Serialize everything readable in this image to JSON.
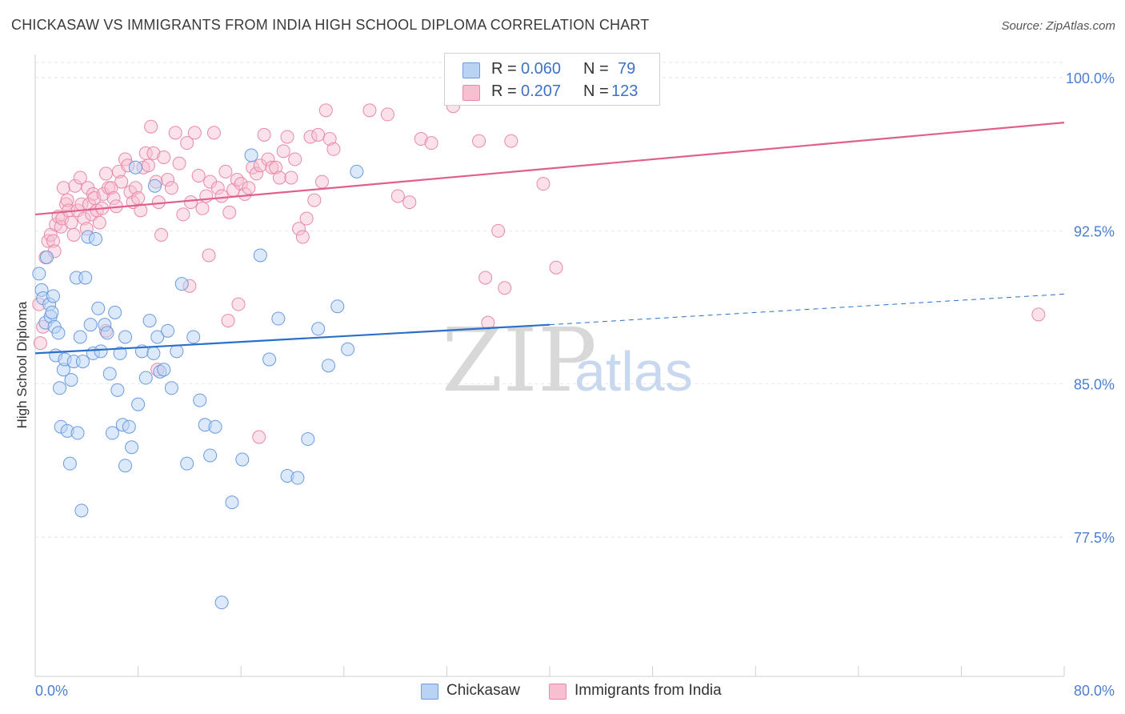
{
  "title": "CHICKASAW VS IMMIGRANTS FROM INDIA HIGH SCHOOL DIPLOMA CORRELATION CHART",
  "source": "Source: ZipAtlas.com",
  "watermark": {
    "zip": "ZIP",
    "atlas": "atlas"
  },
  "legend": {
    "rows": [
      {
        "r_label": "R = ",
        "r_value": "0.060",
        "n_label": "N = ",
        "n_value": "79"
      },
      {
        "r_label": "R = ",
        "r_value": "0.207",
        "n_label": "N = ",
        "n_value": "123"
      }
    ]
  },
  "bottom_legend": [
    "Chickasaw",
    "Immigrants from India"
  ],
  "colors": {
    "blue_fill": "#b9d3f5",
    "blue_stroke": "#6b9be0",
    "blue_line": "#2a6fc9",
    "pink_fill": "#f7bfd0",
    "pink_stroke": "#e889a8",
    "pink_line": "#e0608b",
    "grid": "#e6e6e6",
    "tick_text": "#4a7fd0"
  },
  "chart_data": {
    "type": "scatter",
    "title": "CHICKASAW VS IMMIGRANTS FROM INDIA HIGH SCHOOL DIPLOMA CORRELATION CHART",
    "xlabel": "",
    "ylabel": "High School Diploma",
    "xlim": [
      0,
      80
    ],
    "ylim": [
      71.0,
      101.0
    ],
    "x_tick_labels": [
      "0.0%",
      "80.0%"
    ],
    "y_ticks": [
      77.5,
      85.0,
      92.5,
      100.0
    ],
    "y_tick_labels": [
      "77.5%",
      "85.0%",
      "92.5%",
      "100.0%"
    ],
    "grid": true,
    "legend_position": "top-center",
    "series": [
      {
        "name": "Chickasaw",
        "color": "#6b9be0",
        "R": 0.06,
        "N": 79,
        "trend": {
          "x0": 0,
          "y0": 86.5,
          "x1": 40,
          "y1": 87.9,
          "dashed_x1": 80,
          "dashed_y1": 89.4
        },
        "points": [
          [
            0.3,
            90.4
          ],
          [
            0.5,
            89.6
          ],
          [
            0.6,
            89.2
          ],
          [
            0.8,
            88.0
          ],
          [
            0.9,
            91.2
          ],
          [
            1.1,
            88.9
          ],
          [
            1.2,
            88.3
          ],
          [
            1.3,
            88.5
          ],
          [
            1.4,
            89.3
          ],
          [
            1.5,
            87.8
          ],
          [
            1.6,
            86.4
          ],
          [
            1.8,
            87.5
          ],
          [
            1.9,
            84.8
          ],
          [
            2.0,
            82.9
          ],
          [
            2.2,
            85.7
          ],
          [
            2.3,
            86.2
          ],
          [
            2.5,
            82.7
          ],
          [
            2.7,
            81.1
          ],
          [
            2.8,
            85.2
          ],
          [
            3.0,
            86.1
          ],
          [
            3.2,
            90.2
          ],
          [
            3.3,
            82.6
          ],
          [
            3.5,
            87.3
          ],
          [
            3.7,
            86.1
          ],
          [
            3.9,
            90.2
          ],
          [
            4.1,
            92.2
          ],
          [
            4.3,
            87.9
          ],
          [
            4.5,
            86.5
          ],
          [
            4.7,
            92.1
          ],
          [
            4.9,
            88.7
          ],
          [
            5.1,
            86.6
          ],
          [
            5.4,
            87.9
          ],
          [
            5.6,
            87.5
          ],
          [
            5.8,
            85.5
          ],
          [
            6.0,
            82.6
          ],
          [
            6.2,
            88.5
          ],
          [
            6.4,
            84.7
          ],
          [
            6.6,
            86.5
          ],
          [
            6.8,
            83.0
          ],
          [
            7.0,
            87.3
          ],
          [
            7.3,
            82.9
          ],
          [
            7.5,
            81.9
          ],
          [
            7.8,
            95.6
          ],
          [
            8.0,
            84.0
          ],
          [
            8.3,
            86.6
          ],
          [
            8.6,
            85.3
          ],
          [
            8.9,
            88.1
          ],
          [
            9.2,
            86.5
          ],
          [
            9.5,
            87.3
          ],
          [
            9.7,
            85.6
          ],
          [
            10.0,
            85.7
          ],
          [
            10.3,
            87.6
          ],
          [
            10.6,
            84.8
          ],
          [
            11.0,
            86.6
          ],
          [
            11.4,
            89.9
          ],
          [
            11.8,
            81.1
          ],
          [
            12.3,
            87.3
          ],
          [
            12.8,
            84.2
          ],
          [
            13.2,
            83.0
          ],
          [
            13.6,
            81.5
          ],
          [
            14.0,
            82.9
          ],
          [
            14.5,
            74.3
          ],
          [
            15.3,
            79.2
          ],
          [
            16.1,
            81.3
          ],
          [
            16.8,
            96.2
          ],
          [
            17.5,
            91.3
          ],
          [
            18.2,
            86.2
          ],
          [
            18.9,
            88.2
          ],
          [
            19.6,
            80.5
          ],
          [
            20.4,
            80.4
          ],
          [
            21.2,
            82.3
          ],
          [
            22.0,
            87.7
          ],
          [
            22.8,
            85.9
          ],
          [
            23.5,
            88.8
          ],
          [
            24.3,
            86.7
          ],
          [
            25.0,
            95.4
          ],
          [
            3.6,
            78.8
          ],
          [
            9.3,
            94.7
          ],
          [
            7.0,
            81.0
          ]
        ]
      },
      {
        "name": "Immigrants from India",
        "color": "#e889a8",
        "R": 0.207,
        "N": 123,
        "trend": {
          "x0": 0,
          "y0": 93.3,
          "x1": 80,
          "y1": 97.8
        },
        "points": [
          [
            0.3,
            88.9
          ],
          [
            0.4,
            87.0
          ],
          [
            0.6,
            87.8
          ],
          [
            0.8,
            91.2
          ],
          [
            1.0,
            92.0
          ],
          [
            1.2,
            92.3
          ],
          [
            1.4,
            92.0
          ],
          [
            1.5,
            91.5
          ],
          [
            1.6,
            92.8
          ],
          [
            1.8,
            93.2
          ],
          [
            2.0,
            92.7
          ],
          [
            2.1,
            93.1
          ],
          [
            2.2,
            94.6
          ],
          [
            2.4,
            93.8
          ],
          [
            2.5,
            94.0
          ],
          [
            2.6,
            93.5
          ],
          [
            2.8,
            92.9
          ],
          [
            3.0,
            92.3
          ],
          [
            3.1,
            94.7
          ],
          [
            3.3,
            93.5
          ],
          [
            3.5,
            95.1
          ],
          [
            3.6,
            93.8
          ],
          [
            3.8,
            93.1
          ],
          [
            4.0,
            92.6
          ],
          [
            4.1,
            94.6
          ],
          [
            4.2,
            93.8
          ],
          [
            4.4,
            93.3
          ],
          [
            4.5,
            94.3
          ],
          [
            4.6,
            94.1
          ],
          [
            4.8,
            93.5
          ],
          [
            5.0,
            92.9
          ],
          [
            5.2,
            93.6
          ],
          [
            5.3,
            94.3
          ],
          [
            5.5,
            95.3
          ],
          [
            5.7,
            94.6
          ],
          [
            5.9,
            94.6
          ],
          [
            6.1,
            94.1
          ],
          [
            6.3,
            93.7
          ],
          [
            6.5,
            95.4
          ],
          [
            6.7,
            94.9
          ],
          [
            7.0,
            96.0
          ],
          [
            7.2,
            95.7
          ],
          [
            7.4,
            94.4
          ],
          [
            7.6,
            93.9
          ],
          [
            7.8,
            94.6
          ],
          [
            8.0,
            94.1
          ],
          [
            8.2,
            93.5
          ],
          [
            8.4,
            95.6
          ],
          [
            8.6,
            96.3
          ],
          [
            8.8,
            95.7
          ],
          [
            9.0,
            97.6
          ],
          [
            9.2,
            96.3
          ],
          [
            9.4,
            94.9
          ],
          [
            9.6,
            93.9
          ],
          [
            9.8,
            92.3
          ],
          [
            10.0,
            96.1
          ],
          [
            10.3,
            95.0
          ],
          [
            10.6,
            94.6
          ],
          [
            10.9,
            97.3
          ],
          [
            11.2,
            95.8
          ],
          [
            11.5,
            93.3
          ],
          [
            11.8,
            96.8
          ],
          [
            12.1,
            93.9
          ],
          [
            12.4,
            97.3
          ],
          [
            12.7,
            95.2
          ],
          [
            13.0,
            93.6
          ],
          [
            13.3,
            94.2
          ],
          [
            13.6,
            94.9
          ],
          [
            13.9,
            97.3
          ],
          [
            14.2,
            94.6
          ],
          [
            14.5,
            94.2
          ],
          [
            14.8,
            95.4
          ],
          [
            15.1,
            93.4
          ],
          [
            15.4,
            94.5
          ],
          [
            15.7,
            95.0
          ],
          [
            16.0,
            94.8
          ],
          [
            16.3,
            94.3
          ],
          [
            16.6,
            94.6
          ],
          [
            16.9,
            95.6
          ],
          [
            17.2,
            95.3
          ],
          [
            17.5,
            95.7
          ],
          [
            17.8,
            97.2
          ],
          [
            18.1,
            96.0
          ],
          [
            18.4,
            95.6
          ],
          [
            18.7,
            95.6
          ],
          [
            19.0,
            95.1
          ],
          [
            19.3,
            96.4
          ],
          [
            19.6,
            97.1
          ],
          [
            19.9,
            95.1
          ],
          [
            20.2,
            96.0
          ],
          [
            20.5,
            92.6
          ],
          [
            20.8,
            92.2
          ],
          [
            21.1,
            93.1
          ],
          [
            21.4,
            97.1
          ],
          [
            21.7,
            94.0
          ],
          [
            22.0,
            97.2
          ],
          [
            22.3,
            94.9
          ],
          [
            22.6,
            98.4
          ],
          [
            22.9,
            97.0
          ],
          [
            23.2,
            96.5
          ],
          [
            26.0,
            98.4
          ],
          [
            27.4,
            98.2
          ],
          [
            28.2,
            94.2
          ],
          [
            29.1,
            93.9
          ],
          [
            30.0,
            97.0
          ],
          [
            30.8,
            96.8
          ],
          [
            32.5,
            98.6
          ],
          [
            34.5,
            96.9
          ],
          [
            35.0,
            90.2
          ],
          [
            35.2,
            88.0
          ],
          [
            36.0,
            92.5
          ],
          [
            36.5,
            89.7
          ],
          [
            37.0,
            96.9
          ],
          [
            39.5,
            94.8
          ],
          [
            40.5,
            90.7
          ],
          [
            78.0,
            88.4
          ],
          [
            12.0,
            89.8
          ],
          [
            9.5,
            85.7
          ],
          [
            17.4,
            82.4
          ],
          [
            13.5,
            91.3
          ],
          [
            15.8,
            88.9
          ],
          [
            15.0,
            88.1
          ],
          [
            5.5,
            87.6
          ]
        ]
      }
    ]
  }
}
